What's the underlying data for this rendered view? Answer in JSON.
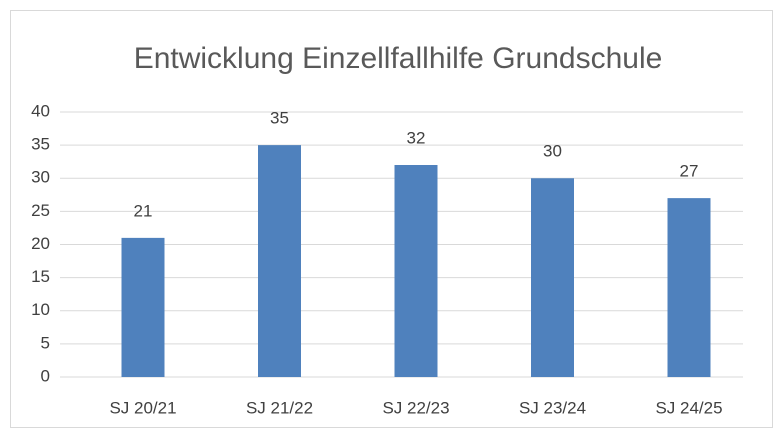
{
  "chart_data": {
    "type": "bar",
    "title": "Entwicklung Einzellfallhilfe Grundschule",
    "categories": [
      "SJ 20/21",
      "SJ 21/22",
      "SJ 22/23",
      "SJ 23/24",
      "SJ 24/25"
    ],
    "values": [
      21,
      35,
      32,
      30,
      27
    ],
    "color": "#4f81bd",
    "ylim": [
      0,
      40
    ],
    "yticks": [
      0,
      5,
      10,
      15,
      20,
      25,
      30,
      35,
      40
    ],
    "grid": true,
    "data_labels": true
  }
}
